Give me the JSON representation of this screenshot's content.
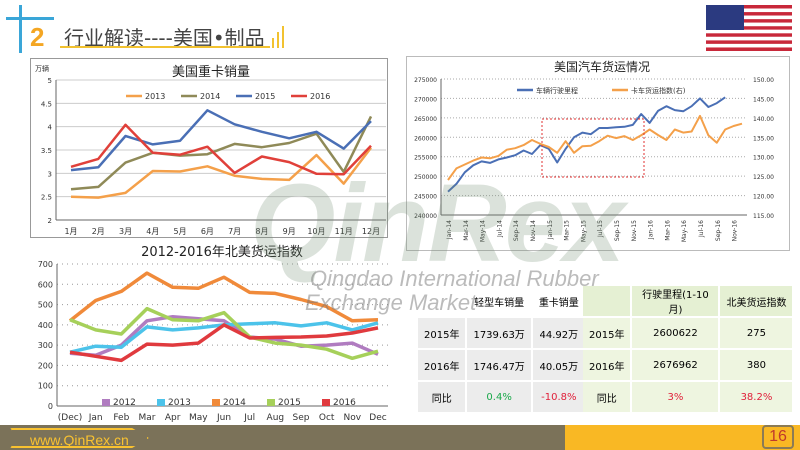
{
  "header": {
    "number": "2",
    "title": "行业解读----美国•制品"
  },
  "watermark": {
    "brand": "QinRex",
    "line1": "Qingdao International Rubber",
    "line2": "Exchange Market"
  },
  "footer": {
    "url": "www.QinRex.cn",
    "page": "16"
  },
  "chart_data": [
    {
      "type": "line",
      "title": "美国重卡销量",
      "unit": "万辆",
      "categories": [
        "1月",
        "2月",
        "3月",
        "4月",
        "5月",
        "6月",
        "7月",
        "8月",
        "9月",
        "10月",
        "11月",
        "12月"
      ],
      "ylim": [
        2,
        5
      ],
      "yticks": [
        "2",
        "2.5",
        "3",
        "3.5",
        "4",
        "4.5",
        "5"
      ],
      "legend": "top",
      "series": [
        {
          "name": "2013",
          "color": "#f4a04a",
          "values": [
            2.5,
            2.48,
            2.58,
            3.05,
            3.04,
            3.15,
            2.95,
            2.88,
            2.86,
            3.39,
            2.78,
            3.55
          ]
        },
        {
          "name": "2014",
          "color": "#8f8a58",
          "values": [
            2.66,
            2.71,
            3.23,
            3.44,
            3.38,
            3.41,
            3.63,
            3.56,
            3.65,
            3.85,
            3.03,
            4.22
          ]
        },
        {
          "name": "2015",
          "color": "#4a6fb5",
          "values": [
            3.07,
            3.13,
            3.8,
            3.62,
            3.7,
            4.35,
            4.05,
            3.89,
            3.75,
            3.89,
            3.53,
            4.12
          ]
        },
        {
          "name": "2016",
          "color": "#e0403a",
          "values": [
            3.14,
            3.31,
            4.04,
            3.44,
            3.4,
            3.57,
            3.01,
            3.36,
            3.24,
            2.99,
            2.98,
            3.59
          ]
        }
      ]
    },
    {
      "type": "line",
      "title": "美国汽车货运情况",
      "xticks": [
        "Jan-14",
        "Mar-14",
        "May-14",
        "Jul-14",
        "Sep-14",
        "Nov-14",
        "Jan-15",
        "Mar-15",
        "May-15",
        "Jul-15",
        "Sep-15",
        "Nov-15",
        "Jan-16",
        "Mar-16",
        "May-16",
        "Jul-16",
        "Sep-16",
        "Nov-16"
      ],
      "ylim": [
        240000,
        275000
      ],
      "yticks": [
        "240000",
        "245000",
        "250000",
        "255000",
        "260000",
        "265000",
        "270000",
        "275000"
      ],
      "y2lim": [
        115,
        150
      ],
      "y2ticks": [
        "115.00",
        "120.00",
        "125.00",
        "130.00",
        "135.00",
        "140.00",
        "145.00",
        "150.00"
      ],
      "legend": "top",
      "series": [
        {
          "name": "车辆行驶里程",
          "color": "#4a6fb5",
          "axis": "left",
          "values": [
            246000,
            248000,
            251000,
            252800,
            253800,
            253400,
            254300,
            254800,
            255400,
            256600,
            255700,
            258000,
            257000,
            253500,
            257000,
            260000,
            261200,
            260800,
            262400,
            262400,
            262600,
            262700,
            263200,
            266000,
            263700,
            266800,
            268000,
            267000,
            266700,
            268000,
            270000,
            267800,
            268800,
            270300
          ]
        },
        {
          "name": "卡车货运指数(右)",
          "color": "#f4a04a",
          "axis": "right",
          "values": [
            124,
            127,
            128,
            129,
            129.8,
            129.6,
            130.2,
            131.8,
            132.2,
            133,
            134.3,
            133.3,
            132.5,
            131,
            134,
            131,
            132.7,
            132.8,
            134,
            135.4,
            134.8,
            135.3,
            134.3,
            135.5,
            137,
            135.6,
            134.3,
            137,
            136.2,
            136.5,
            140.5,
            135.5,
            133.6,
            137,
            137.9,
            138.5
          ]
        }
      ]
    },
    {
      "type": "line",
      "title": "2012-2016年北美货运指数",
      "categories": [
        "(Dec)",
        "Jan",
        "Feb",
        "Mar",
        "Apr",
        "May",
        "Jun",
        "Jul",
        "Aug",
        "Sep",
        "Oct",
        "Nov",
        "Dec"
      ],
      "ylim": [
        0,
        700
      ],
      "yticks": [
        "0",
        "100",
        "200",
        "300",
        "400",
        "500",
        "600",
        "700"
      ],
      "legend": "bottom",
      "series": [
        {
          "name": "2012",
          "color": "#b07cc0",
          "values": [
            260,
            250,
            300,
            420,
            440,
            430,
            420,
            340,
            330,
            295,
            300,
            310,
            255
          ]
        },
        {
          "name": "2013",
          "color": "#4cc3ea",
          "values": [
            265,
            295,
            290,
            390,
            375,
            385,
            400,
            405,
            410,
            395,
            410,
            375,
            410
          ]
        },
        {
          "name": "2014",
          "color": "#f08a3a",
          "values": [
            420,
            520,
            565,
            655,
            585,
            580,
            635,
            560,
            555,
            525,
            490,
            420,
            425
          ]
        },
        {
          "name": "2015",
          "color": "#a6d05a",
          "values": [
            425,
            375,
            355,
            480,
            425,
            420,
            460,
            340,
            310,
            300,
            280,
            235,
            270
          ]
        },
        {
          "name": "2016",
          "color": "#e03a3e",
          "values": [
            265,
            245,
            225,
            305,
            300,
            310,
            400,
            335,
            338,
            340,
            345,
            360,
            385
          ]
        }
      ]
    }
  ],
  "table_sales": {
    "headers": [
      "",
      "轻型车销量",
      "重卡销量"
    ],
    "rows": [
      [
        "2015年",
        "1739.63万",
        "44.92万"
      ],
      [
        "2016年",
        "1746.47万",
        "40.05万"
      ],
      [
        "同比",
        "0.4%",
        "-10.8%"
      ]
    ]
  },
  "table_freight": {
    "headers": [
      "",
      "行驶里程(1-10月)",
      "北美货运指数"
    ],
    "rows": [
      [
        "2015年",
        "2600622",
        "275"
      ],
      [
        "2016年",
        "2676962",
        "380"
      ],
      [
        "同比",
        "3%",
        "38.2%"
      ]
    ]
  },
  "colors": {
    "positive": "#1aa84a",
    "negative": "#e0203a"
  }
}
